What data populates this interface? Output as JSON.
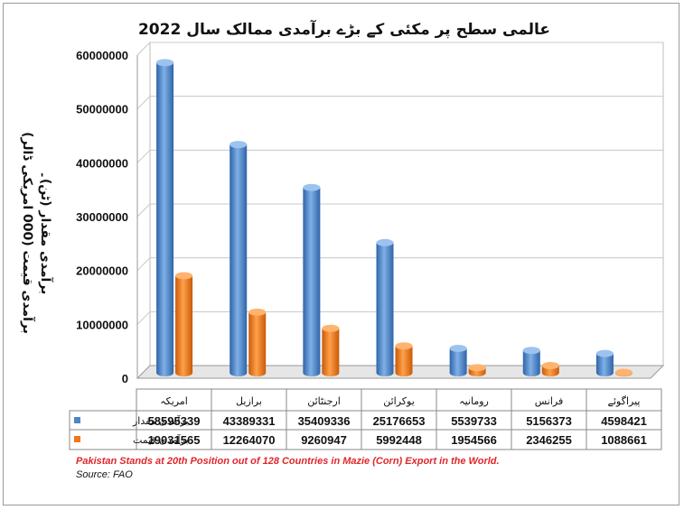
{
  "chart_data": {
    "type": "bar",
    "title": "عالمی سطح پر مکئی کے بڑے برآمدی ممالک سال 2022",
    "ylabel_line1": "برآمدی مقدار (ٹن)۔",
    "ylabel_line2": "برآمدی قیمت (000 امریکی ڈالر)",
    "ylim": [
      0,
      60000000
    ],
    "yticks": [
      0,
      10000000,
      20000000,
      30000000,
      40000000,
      50000000,
      60000000
    ],
    "ytick_labels": [
      "0",
      "10000000",
      "20000000",
      "30000000",
      "40000000",
      "50000000",
      "60000000"
    ],
    "grid": true,
    "categories": [
      "امریکہ",
      "برازیل",
      "ارجنٹائن",
      "یوکرائن",
      "رومانیہ",
      "فرانس",
      "پیراگوئے"
    ],
    "series": [
      {
        "name": "برآمدی مقدار",
        "color": "#4a86c8",
        "values": [
          58595339,
          43389331,
          35409336,
          25176653,
          5539733,
          5156373,
          4598421
        ]
      },
      {
        "name": "برآمدی قیمت",
        "color": "#f0771e",
        "values": [
          19031565,
          12264070,
          9260947,
          5992448,
          1954566,
          2346255,
          1088661
        ]
      }
    ]
  },
  "footnote": "Pakistan Stands at 20th Position out of 128 Countries in Mazie (Corn)  Export in the World.",
  "source": "Source: FAO"
}
